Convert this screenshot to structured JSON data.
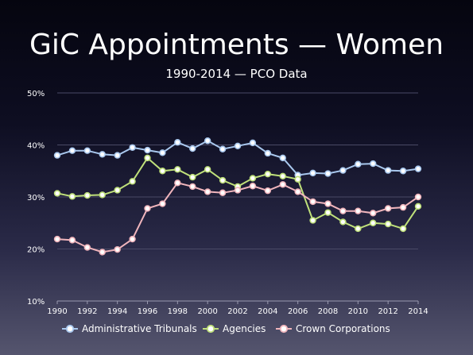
{
  "chart_data": {
    "type": "line",
    "title": "GiC Appointments — Women",
    "subtitle": "1990-2014 — PCO Data",
    "x": [
      1990,
      1991,
      1992,
      1993,
      1994,
      1995,
      1996,
      1997,
      1998,
      1999,
      2000,
      2001,
      2002,
      2003,
      2004,
      2005,
      2006,
      2007,
      2008,
      2009,
      2010,
      2011,
      2012,
      2013,
      2014
    ],
    "x_ticks": [
      "1990",
      "1992",
      "1994",
      "1996",
      "1998",
      "2000",
      "2002",
      "2004",
      "2006",
      "2008",
      "2010",
      "2012",
      "2014"
    ],
    "y_ticks": [
      "10%",
      "20%",
      "30%",
      "40%",
      "50%"
    ],
    "ylim": [
      10,
      50
    ],
    "xlim": [
      1990,
      2014
    ],
    "grid": true,
    "legend_position": "bottom",
    "series": [
      {
        "name": "Administrative Tribunals",
        "color": "#a9c8ee",
        "values": [
          38.0,
          38.9,
          38.9,
          38.2,
          38.0,
          39.5,
          39.0,
          38.5,
          40.5,
          39.3,
          40.8,
          39.2,
          39.8,
          40.4,
          38.4,
          37.5,
          34.2,
          34.6,
          34.5,
          35.1,
          36.3,
          36.4,
          35.1,
          35.0,
          35.4
        ]
      },
      {
        "name": "Agencies",
        "color": "#bfe07a",
        "values": [
          30.7,
          30.1,
          30.3,
          30.4,
          31.3,
          33.0,
          37.5,
          35.0,
          35.3,
          33.8,
          35.3,
          33.2,
          32.0,
          33.6,
          34.4,
          34.0,
          33.4,
          25.5,
          27.0,
          25.2,
          23.9,
          25.0,
          24.8,
          23.9,
          28.2
        ]
      },
      {
        "name": "Crown Corporations",
        "color": "#f0b5bc",
        "values": [
          21.9,
          21.7,
          20.3,
          19.4,
          19.9,
          21.9,
          27.8,
          28.7,
          32.7,
          32.0,
          31.0,
          30.8,
          31.3,
          32.1,
          31.2,
          32.4,
          31.0,
          29.1,
          28.7,
          27.3,
          27.3,
          26.9,
          27.8,
          28.0,
          30.0
        ]
      }
    ]
  }
}
